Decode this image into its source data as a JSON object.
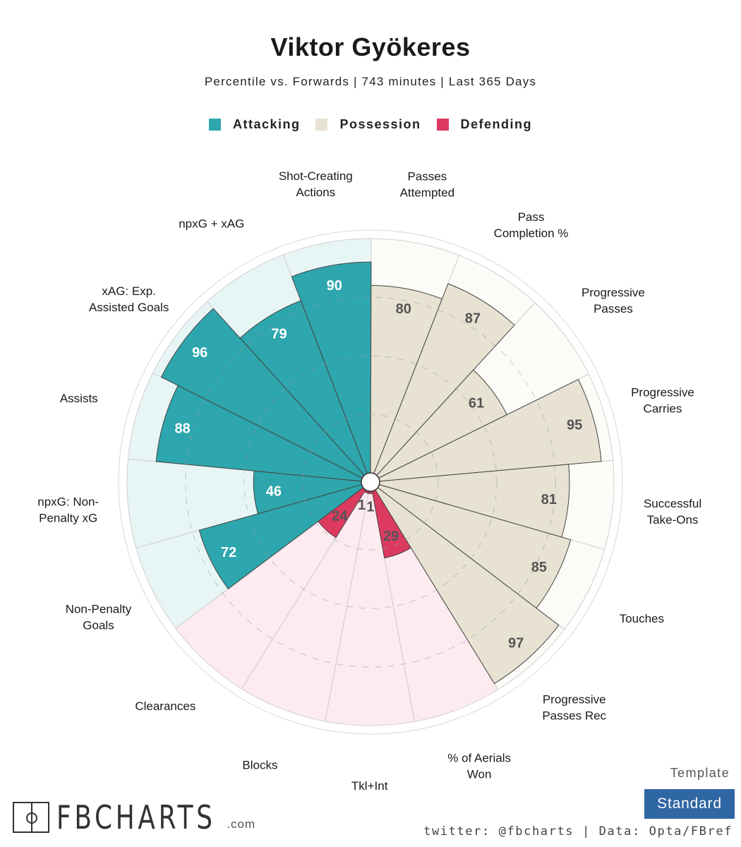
{
  "title": "Viktor Gyökeres",
  "subtitle": "Percentile vs. Forwards | 743 minutes | Last 365 Days",
  "legend": [
    {
      "label": "Attacking",
      "color": "#2ea6ad"
    },
    {
      "label": "Possession",
      "color": "#e8e2d2"
    },
    {
      "label": "Defending",
      "color": "#dc3a5f"
    }
  ],
  "template": {
    "label": "Template",
    "value": "Standard"
  },
  "footer": {
    "credit": "twitter: @fbcharts | Data: Opta/FBref",
    "logo_text": "FBCHARTS",
    "logo_suffix": ".com"
  },
  "chart_data": {
    "type": "radial-bar",
    "title": "Viktor Gyökeres",
    "range": [
      0,
      100
    ],
    "categories": {
      "Attacking": {
        "fill": "#2ea6ad",
        "background": "#e8f5f5"
      },
      "Possession": {
        "fill": "#e8e2d2",
        "background": "#fbfbf8"
      },
      "Defending": {
        "fill": "#dc3a5f",
        "background": "#fdebf0"
      }
    },
    "metrics": [
      {
        "label": "Shot-Creating Actions",
        "value": 90,
        "group": "Attacking"
      },
      {
        "label": "Passes Attempted",
        "value": 80,
        "group": "Possession"
      },
      {
        "label": "Pass Completion %",
        "value": 87,
        "group": "Possession"
      },
      {
        "label": "Progressive Passes",
        "value": 61,
        "group": "Possession"
      },
      {
        "label": "Progressive Carries",
        "value": 95,
        "group": "Possession"
      },
      {
        "label": "Successful Take-Ons",
        "value": 81,
        "group": "Possession"
      },
      {
        "label": "Touches",
        "value": 85,
        "group": "Possession"
      },
      {
        "label": "Progressive Passes Rec",
        "value": 97,
        "group": "Possession"
      },
      {
        "label": "% of Aerials Won",
        "value": 29,
        "group": "Defending"
      },
      {
        "label": "Tkl+Int",
        "value": 1,
        "group": "Defending"
      },
      {
        "label": "Blocks",
        "value": 1,
        "group": "Defending"
      },
      {
        "label": "Clearances",
        "value": 24,
        "group": "Defending"
      },
      {
        "label": "Non-Penalty Goals",
        "value": 72,
        "group": "Attacking"
      },
      {
        "label": "npxG: Non-Penalty xG",
        "value": 46,
        "group": "Attacking"
      },
      {
        "label": "Assists",
        "value": 88,
        "group": "Attacking"
      },
      {
        "label": "xAG: Exp. Assisted Goals",
        "value": 96,
        "group": "Attacking"
      },
      {
        "label": "npxG + xAG",
        "value": 79,
        "group": "Attacking"
      }
    ],
    "metric_label_lines": [
      [
        "Shot-Creating",
        "Actions"
      ],
      [
        "Passes",
        "Attempted"
      ],
      [
        "Pass",
        "Completion %"
      ],
      [
        "Progressive",
        "Passes"
      ],
      [
        "Progressive",
        "Carries"
      ],
      [
        "Successful",
        "Take-Ons"
      ],
      [
        "Touches"
      ],
      [
        "Progressive",
        "Passes Rec"
      ],
      [
        "% of Aerials",
        "Won"
      ],
      [
        "Tkl+Int"
      ],
      [
        "Blocks"
      ],
      [
        "Clearances"
      ],
      [
        "Non-Penalty",
        "Goals"
      ],
      [
        "npxG: Non-",
        "Penalty xG"
      ],
      [
        "Assists"
      ],
      [
        "xAG: Exp.",
        "Assisted Goals"
      ],
      [
        "npxG + xAG"
      ]
    ],
    "gridlines": [
      25,
      50,
      75
    ]
  }
}
